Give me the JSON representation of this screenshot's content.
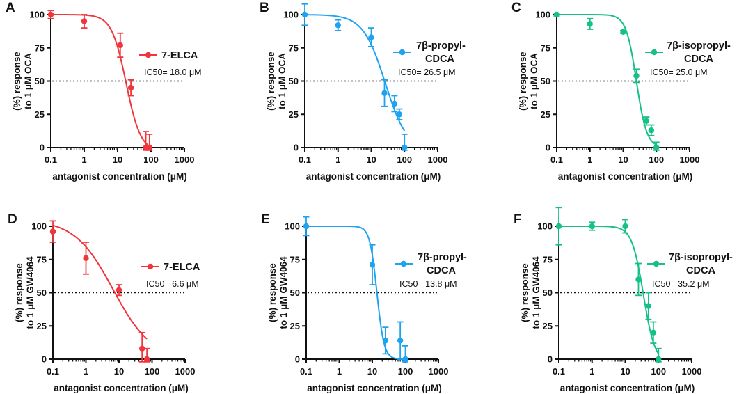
{
  "chart_data": [
    {
      "type": "scatter",
      "panel": "A",
      "series_name": "7-ELCA",
      "color": "#f0363c",
      "ic50_label": "IC50= 18.0 μM",
      "ic50": 18.0,
      "hill": 2.0,
      "top": 100,
      "bottom": -3,
      "points": [
        {
          "x": 0.1,
          "y": 100,
          "err": 3
        },
        {
          "x": 1,
          "y": 95,
          "err": 5
        },
        {
          "x": 12,
          "y": 77,
          "err": 9
        },
        {
          "x": 25,
          "y": 45,
          "err": 6
        },
        {
          "x": 70,
          "y": 0,
          "err": 12
        },
        {
          "x": 90,
          "y": 0,
          "err": 10
        }
      ],
      "xlabel": "antagonist concentration (μM)",
      "ylabel_line1": "(%) response",
      "ylabel_line2": "to 1 μM OCA",
      "xticks": [
        "0.1",
        "1",
        "10",
        "100",
        "1000"
      ],
      "yticks": [
        "0",
        "25",
        "50",
        "75",
        "100"
      ],
      "xlim": [
        0.1,
        1000
      ],
      "ylim": [
        0,
        100
      ],
      "reference_line": 50,
      "curve_xmax": 100
    },
    {
      "type": "scatter",
      "panel": "B",
      "series_name_line1": "7β-propyl-",
      "series_name_line2": "CDCA",
      "color": "#1ea3f0",
      "ic50_label": "IC50= 26.5 μM",
      "ic50": 26.5,
      "hill": 1.3,
      "top": 100,
      "bottom": -3,
      "points": [
        {
          "x": 0.1,
          "y": 100,
          "err": 8
        },
        {
          "x": 1,
          "y": 92,
          "err": 4
        },
        {
          "x": 10,
          "y": 83,
          "err": 7
        },
        {
          "x": 25,
          "y": 41,
          "err": 10
        },
        {
          "x": 50,
          "y": 33,
          "err": 6
        },
        {
          "x": 70,
          "y": 25,
          "err": 4
        },
        {
          "x": 100,
          "y": 0,
          "err": 10
        }
      ],
      "xlabel": "antagonist concentration (μM)",
      "ylabel_line1": "(%) response",
      "ylabel_line2": "to 1 μM OCA",
      "xticks": [
        "0.1",
        "1",
        "10",
        "100",
        "1000"
      ],
      "yticks": [
        "0",
        "25",
        "50",
        "75",
        "100"
      ],
      "xlim": [
        0.1,
        1000
      ],
      "ylim": [
        0,
        100
      ],
      "reference_line": 50,
      "curve_xmax": 100
    },
    {
      "type": "scatter",
      "panel": "C",
      "series_name_line1": "7β-isopropyl-",
      "series_name_line2": "CDCA",
      "color": "#17c08a",
      "ic50_label": "IC50= 25.0 μM",
      "ic50": 25.0,
      "hill": 2.8,
      "top": 100,
      "bottom": 0,
      "points": [
        {
          "x": 0.1,
          "y": 100,
          "err": 1
        },
        {
          "x": 1,
          "y": 93,
          "err": 4
        },
        {
          "x": 10,
          "y": 87,
          "err": 1
        },
        {
          "x": 25,
          "y": 54,
          "err": 5
        },
        {
          "x": 50,
          "y": 20,
          "err": 3
        },
        {
          "x": 70,
          "y": 13,
          "err": 4
        },
        {
          "x": 100,
          "y": 0,
          "err": 4
        }
      ],
      "xlabel": "antagonist concentration (μM)",
      "ylabel_line1": "(%) response",
      "ylabel_line2": "to 1 μM OCA",
      "xticks": [
        "0.1",
        "1",
        "10",
        "100",
        "1000"
      ],
      "yticks": [
        "0",
        "25",
        "50",
        "75",
        "100"
      ],
      "xlim": [
        0.1,
        1000
      ],
      "ylim": [
        0,
        100
      ],
      "reference_line": 50,
      "curve_xmax": 100
    },
    {
      "type": "scatter",
      "panel": "D",
      "series_name": "7-ELCA",
      "color": "#f0363c",
      "ic50_label": "IC50= 6.6 μM",
      "ic50": 6.6,
      "hill": 0.75,
      "top": 105,
      "bottom": 0,
      "points": [
        {
          "x": 0.1,
          "y": 96,
          "err": 8
        },
        {
          "x": 1,
          "y": 76,
          "err": 12
        },
        {
          "x": 10,
          "y": 52,
          "err": 4
        },
        {
          "x": 50,
          "y": 8,
          "err": 12
        },
        {
          "x": 70,
          "y": 0,
          "err": 8
        }
      ],
      "xlabel": "antagonist concentration (μM)",
      "ylabel_line1": "(%) response",
      "ylabel_line2": "to 1 μM GW4064",
      "xticks": [
        "0.1",
        "1",
        "10",
        "100",
        "1000"
      ],
      "yticks": [
        "0",
        "25",
        "50",
        "75",
        "100"
      ],
      "xlim": [
        0.1,
        1000
      ],
      "ylim": [
        0,
        100
      ],
      "reference_line": 50,
      "curve_xmax": 70
    },
    {
      "type": "scatter",
      "panel": "E",
      "series_name_line1": "7β-propyl-",
      "series_name_line2": "CDCA",
      "color": "#1ea3f0",
      "ic50_label": "IC50= 13.8 μM",
      "ic50": 13.8,
      "hill": 4.0,
      "top": 100,
      "bottom": 0,
      "points": [
        {
          "x": 0.1,
          "y": 100,
          "err": 7
        },
        {
          "x": 10,
          "y": 71,
          "err": 15
        },
        {
          "x": 25,
          "y": 14,
          "err": 10
        },
        {
          "x": 70,
          "y": 14,
          "err": 14
        },
        {
          "x": 100,
          "y": 0,
          "err": 10
        }
      ],
      "xlabel": "antagonist concentration (μM)",
      "ylabel_line1": "(%) response",
      "ylabel_line2": "to 1 μM GW4064",
      "xticks": [
        "0.1",
        "1",
        "10",
        "100",
        "1000"
      ],
      "yticks": [
        "0",
        "25",
        "50",
        "75",
        "100"
      ],
      "xlim": [
        0.1,
        1000
      ],
      "ylim": [
        0,
        100
      ],
      "reference_line": 50,
      "curve_xmax": 100
    },
    {
      "type": "scatter",
      "panel": "F",
      "series_name_line1": "7β-isopropyl-",
      "series_name_line2": "CDCA",
      "color": "#17c08a",
      "ic50_label": "IC50= 35.2 μM",
      "ic50": 35.2,
      "hill": 2.5,
      "top": 100,
      "bottom": -3,
      "points": [
        {
          "x": 0.1,
          "y": 100,
          "err": 14
        },
        {
          "x": 1,
          "y": 100,
          "err": 3
        },
        {
          "x": 10,
          "y": 100,
          "err": 5
        },
        {
          "x": 25,
          "y": 60,
          "err": 12
        },
        {
          "x": 50,
          "y": 40,
          "err": 10
        },
        {
          "x": 70,
          "y": 20,
          "err": 8
        },
        {
          "x": 100,
          "y": 0,
          "err": 8
        }
      ],
      "xlabel": "antagonist concentration (μM)",
      "ylabel_line1": "(%) response",
      "ylabel_line2": "to 1 μM GW4064",
      "xticks": [
        "0.1",
        "1",
        "10",
        "100",
        "1000"
      ],
      "yticks": [
        "0",
        "25",
        "50",
        "75",
        "100"
      ],
      "xlim": [
        0.1,
        1000
      ],
      "ylim": [
        0,
        100
      ],
      "reference_line": 50,
      "curve_xmax": 100
    }
  ]
}
